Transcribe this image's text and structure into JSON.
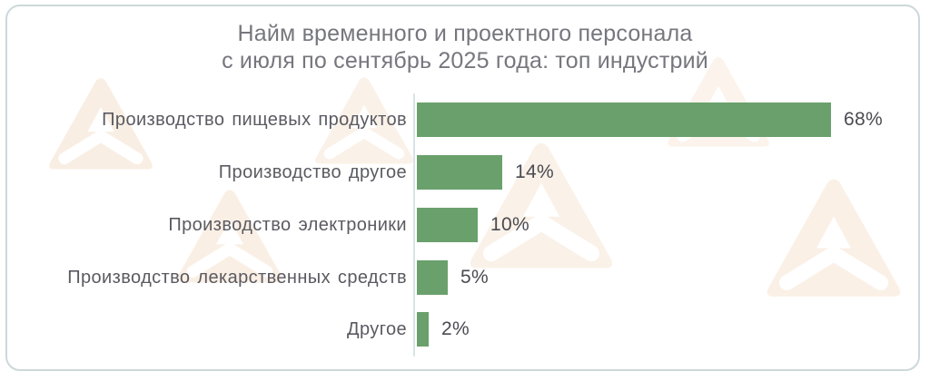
{
  "title": {
    "line1": "Найм временного и проектного персонала",
    "line2": "с июля по сентябрь 2025 года: топ индустрий"
  },
  "chart_data": {
    "type": "bar",
    "orientation": "horizontal",
    "title": "Найм временного и проектного персонала с июля по сентябрь 2025 года: топ индустрий",
    "categories": [
      "Производство пищевых продуктов",
      "Производство другое",
      "Производство электроники",
      "Производство лекарственных средств",
      "Другое"
    ],
    "values": [
      68,
      14,
      10,
      5,
      2
    ],
    "value_labels": [
      "68%",
      "14%",
      "10%",
      "5%",
      "2%"
    ],
    "unit": "%",
    "xlim": [
      0,
      68
    ],
    "grid": false,
    "legend": "none",
    "value_label_position": "right-of-bar"
  },
  "colors": {
    "bar": "#6aa06c",
    "title_text": "#76767e",
    "category_text": "#5a5a62",
    "value_text": "#4a4a52",
    "frame_border": "#ccd8da",
    "axis_line": "#d7e3e7",
    "watermark": "#f8e9da"
  },
  "watermark": {
    "icon": "letter-a-logo"
  }
}
